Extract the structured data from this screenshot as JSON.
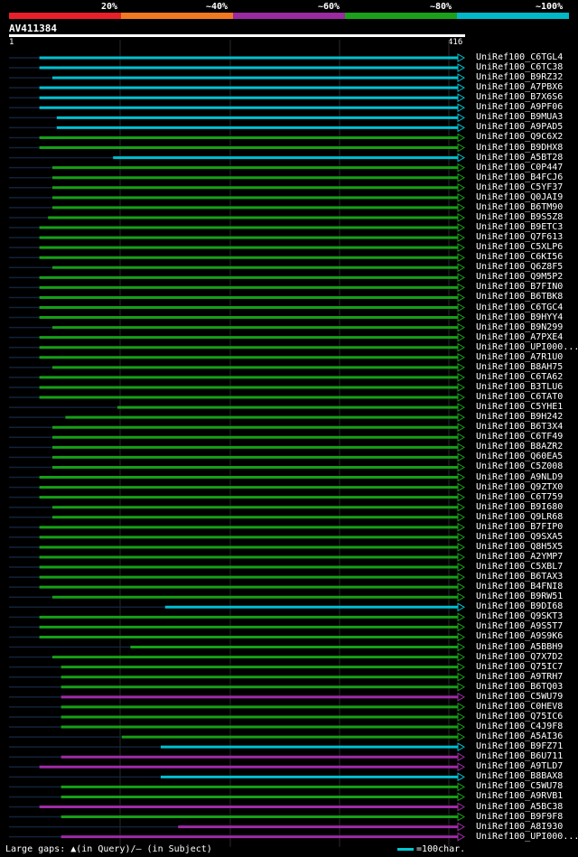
{
  "scale": {
    "labels": [
      "20%",
      "~40%",
      "~60%",
      "~80%",
      "~100%"
    ],
    "colors": [
      "#e8202a",
      "#f07820",
      "#9a2aa0",
      "#1ba01b",
      "#00b8c8"
    ]
  },
  "query": {
    "name": "AV411384",
    "start": "1",
    "end": "416"
  },
  "footer": {
    "gaps": "Large gaps: ▲(in Query)/— (in Subject)",
    "scale": "=100char."
  },
  "hits": [
    {
      "label": "UniRef100_C6TGL4",
      "color": "cyan",
      "start": 0.07
    },
    {
      "label": "UniRef100_C6TC38",
      "color": "cyan",
      "start": 0.07
    },
    {
      "label": "UniRef100_B9RZ32",
      "color": "cyan",
      "start": 0.1
    },
    {
      "label": "UniRef100_A7PBX6",
      "color": "cyan",
      "start": 0.07
    },
    {
      "label": "UniRef100_B7X6S6",
      "color": "cyan",
      "start": 0.07
    },
    {
      "label": "UniRef100_A9PF06",
      "color": "cyan",
      "start": 0.07
    },
    {
      "label": "UniRef100_B9MUA3",
      "color": "cyan",
      "start": 0.11
    },
    {
      "label": "UniRef100_A9PAD5",
      "color": "cyan",
      "start": 0.11
    },
    {
      "label": "UniRef100_Q9C6X2",
      "color": "green",
      "start": 0.07
    },
    {
      "label": "UniRef100_B9DHX8",
      "color": "green",
      "start": 0.07
    },
    {
      "label": "UniRef100_A5BT28",
      "color": "cyan",
      "start": 0.24
    },
    {
      "label": "UniRef100_C0P447",
      "color": "green",
      "start": 0.1
    },
    {
      "label": "UniRef100_B4FCJ6",
      "color": "green",
      "start": 0.1
    },
    {
      "label": "UniRef100_C5YF37",
      "color": "green",
      "start": 0.1
    },
    {
      "label": "UniRef100_Q0JAI9",
      "color": "green",
      "start": 0.1
    },
    {
      "label": "UniRef100_B6TM90",
      "color": "green",
      "start": 0.1
    },
    {
      "label": "UniRef100_B9S5Z8",
      "color": "green",
      "start": 0.09
    },
    {
      "label": "UniRef100_B9ETC3",
      "color": "green",
      "start": 0.07
    },
    {
      "label": "UniRef100_Q7F613",
      "color": "green",
      "start": 0.07
    },
    {
      "label": "UniRef100_C5XLP6",
      "color": "green",
      "start": 0.07
    },
    {
      "label": "UniRef100_C6KI56",
      "color": "green",
      "start": 0.07
    },
    {
      "label": "UniRef100_Q6Z8F5",
      "color": "green",
      "start": 0.1
    },
    {
      "label": "UniRef100_Q9M5P2",
      "color": "green",
      "start": 0.07
    },
    {
      "label": "UniRef100_B7FIN0",
      "color": "green",
      "start": 0.07
    },
    {
      "label": "UniRef100_B6TBK8",
      "color": "green",
      "start": 0.07
    },
    {
      "label": "UniRef100_C6TGC4",
      "color": "green",
      "start": 0.07
    },
    {
      "label": "UniRef100_B9HYY4",
      "color": "green",
      "start": 0.07
    },
    {
      "label": "UniRef100_B9N299",
      "color": "green",
      "start": 0.1
    },
    {
      "label": "UniRef100_A7PXE4",
      "color": "green",
      "start": 0.07
    },
    {
      "label": "UniRef100_UPI000...",
      "color": "green",
      "start": 0.07
    },
    {
      "label": "UniRef100_A7R1U0",
      "color": "green",
      "start": 0.07
    },
    {
      "label": "UniRef100_B8AH75",
      "color": "green",
      "start": 0.1
    },
    {
      "label": "UniRef100_C6TA62",
      "color": "green",
      "start": 0.07
    },
    {
      "label": "UniRef100_B3TLU6",
      "color": "green",
      "start": 0.07
    },
    {
      "label": "UniRef100_C6TAT0",
      "color": "green",
      "start": 0.07
    },
    {
      "label": "UniRef100_C5YHE1",
      "color": "green",
      "start": 0.25
    },
    {
      "label": "UniRef100_B9H242",
      "color": "green",
      "start": 0.13
    },
    {
      "label": "UniRef100_B6T3X4",
      "color": "green",
      "start": 0.1
    },
    {
      "label": "UniRef100_C6TF49",
      "color": "green",
      "start": 0.1
    },
    {
      "label": "UniRef100_B8AZR2",
      "color": "green",
      "start": 0.1
    },
    {
      "label": "UniRef100_Q60EA5",
      "color": "green",
      "start": 0.1
    },
    {
      "label": "UniRef100_C5Z008",
      "color": "green",
      "start": 0.1
    },
    {
      "label": "UniRef100_A9NLD9",
      "color": "green",
      "start": 0.07
    },
    {
      "label": "UniRef100_Q9ZTX0",
      "color": "green",
      "start": 0.07
    },
    {
      "label": "UniRef100_C6T759",
      "color": "green",
      "start": 0.07
    },
    {
      "label": "UniRef100_B9I680",
      "color": "green",
      "start": 0.1
    },
    {
      "label": "UniRef100_Q9LR68",
      "color": "green",
      "start": 0.1
    },
    {
      "label": "UniRef100_B7FIP0",
      "color": "green",
      "start": 0.07
    },
    {
      "label": "UniRef100_Q9SXA5",
      "color": "green",
      "start": 0.07
    },
    {
      "label": "UniRef100_Q8H5X5",
      "color": "green",
      "start": 0.07
    },
    {
      "label": "UniRef100_A2YMP7",
      "color": "green",
      "start": 0.07
    },
    {
      "label": "UniRef100_C5XBL7",
      "color": "green",
      "start": 0.07
    },
    {
      "label": "UniRef100_B6TAX3",
      "color": "green",
      "start": 0.07
    },
    {
      "label": "UniRef100_B4FNI8",
      "color": "green",
      "start": 0.07
    },
    {
      "label": "UniRef100_B9RW51",
      "color": "green",
      "start": 0.1
    },
    {
      "label": "UniRef100_B9DI68",
      "color": "cyan",
      "start": 0.36
    },
    {
      "label": "UniRef100_Q9SKT3",
      "color": "green",
      "start": 0.07
    },
    {
      "label": "UniRef100_A9S5T7",
      "color": "green",
      "start": 0.07
    },
    {
      "label": "UniRef100_A9S9K6",
      "color": "green",
      "start": 0.07
    },
    {
      "label": "UniRef100_A5BBH9",
      "color": "green",
      "start": 0.28
    },
    {
      "label": "UniRef100_Q7X7D2",
      "color": "green",
      "start": 0.1
    },
    {
      "label": "UniRef100_Q75IC7",
      "color": "green",
      "start": 0.12
    },
    {
      "label": "UniRef100_A9TRH7",
      "color": "green",
      "start": 0.12
    },
    {
      "label": "UniRef100_B6TQ03",
      "color": "green",
      "start": 0.12
    },
    {
      "label": "UniRef100_C5WU79",
      "color": "purple",
      "start": 0.12
    },
    {
      "label": "UniRef100_C0HEV8",
      "color": "green",
      "start": 0.12
    },
    {
      "label": "UniRef100_Q75IC6",
      "color": "green",
      "start": 0.12
    },
    {
      "label": "UniRef100_C4J9F8",
      "color": "green",
      "start": 0.12
    },
    {
      "label": "UniRef100_A5AI36",
      "color": "green",
      "start": 0.26
    },
    {
      "label": "UniRef100_B9FZ71",
      "color": "cyan",
      "start": 0.35
    },
    {
      "label": "UniRef100_B6U711",
      "color": "purple",
      "start": 0.12
    },
    {
      "label": "UniRef100_A9TLD7",
      "color": "purple",
      "start": 0.07
    },
    {
      "label": "UniRef100_B8BAX8",
      "color": "cyan",
      "start": 0.35
    },
    {
      "label": "UniRef100_C5WU78",
      "color": "green",
      "start": 0.12
    },
    {
      "label": "UniRef100_A9RVB1",
      "color": "green",
      "start": 0.12
    },
    {
      "label": "UniRef100_A5BC38",
      "color": "purple",
      "start": 0.07
    },
    {
      "label": "UniRef100_B9F9F8",
      "color": "green",
      "start": 0.12
    },
    {
      "label": "UniRef100_A8I930",
      "color": "purple",
      "start": 0.39
    },
    {
      "label": "UniRef100_UPI000...",
      "color": "purple",
      "start": 0.12
    }
  ]
}
